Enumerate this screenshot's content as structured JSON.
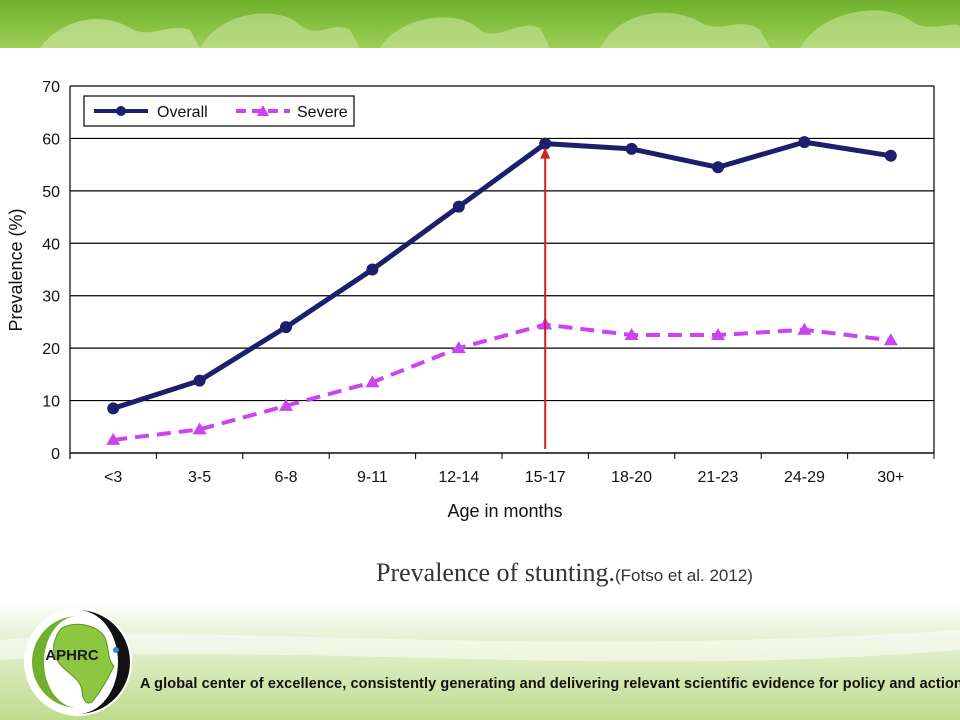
{
  "chart_data": {
    "type": "line",
    "xlabel": "Age in months",
    "ylabel": "Prevalence (%)",
    "ylim": [
      0,
      70
    ],
    "yticks": [
      0,
      10,
      20,
      30,
      40,
      50,
      60,
      70
    ],
    "categories": [
      "<3",
      "3-5",
      "6-8",
      "9-11",
      "12-14",
      "15-17",
      "18-20",
      "21-23",
      "24-29",
      "30+"
    ],
    "series": [
      {
        "name": "Overall",
        "color": "#1c1f6b",
        "style": "solid",
        "marker": "circle",
        "values": [
          8.5,
          13.8,
          24,
          35,
          47,
          59,
          58,
          54.5,
          59.3,
          56.7
        ]
      },
      {
        "name": "Severe",
        "color": "#cc44ee",
        "style": "dashed",
        "marker": "triangle",
        "values": [
          2.5,
          4.5,
          9,
          13.5,
          20,
          24.5,
          22.5,
          22.5,
          23.5,
          21.5
        ]
      }
    ],
    "grid": true,
    "legend_placement": "top-left",
    "annotation": {
      "type": "vertical-arrow",
      "at_category": "15-17",
      "color": "#cc2222"
    }
  },
  "caption": {
    "title": "Prevalence of stunting.",
    "citation": "(Fotso et al. 2012)"
  },
  "footer": {
    "logo_text": "APHRC",
    "tagline": "A global center of excellence, consistently generating and delivering relevant scientific evidence for policy and action"
  },
  "colors": {
    "banner": "#8dc63f",
    "banner_light": "#c9e29c"
  }
}
